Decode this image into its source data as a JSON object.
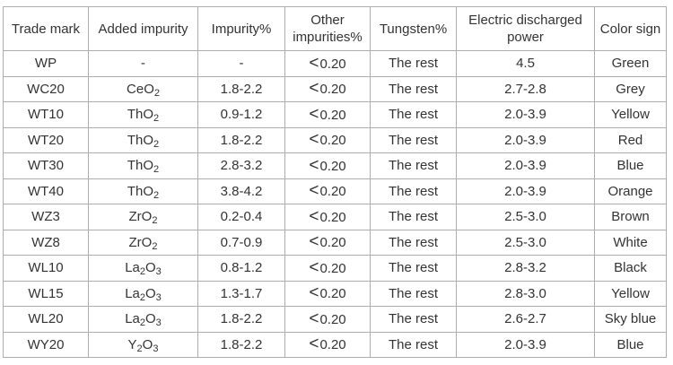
{
  "colors": {
    "border": "#adadad",
    "text": "#333333",
    "background": "#ffffff"
  },
  "table": {
    "columns": [
      {
        "key": "trade_mark",
        "label": "Trade mark"
      },
      {
        "key": "added_impurity",
        "label": "Added impurity"
      },
      {
        "key": "impurity",
        "label": "Impurity%"
      },
      {
        "key": "other",
        "label": "Other impurities%"
      },
      {
        "key": "tungsten",
        "label": "Tungsten%"
      },
      {
        "key": "power",
        "label": "Electric discharged power"
      },
      {
        "key": "color_sign",
        "label": "Color sign"
      }
    ],
    "rows": [
      {
        "trade_mark": "WP",
        "added_impurity": "-",
        "impurity": "-",
        "other": "<0.20",
        "tungsten": "The rest",
        "power": "4.5",
        "color_sign": "Green"
      },
      {
        "trade_mark": "WC20",
        "added_impurity": "CeO_2_",
        "impurity": "1.8-2.2",
        "other": "<0.20",
        "tungsten": "The rest",
        "power": "2.7-2.8",
        "color_sign": "Grey"
      },
      {
        "trade_mark": "WT10",
        "added_impurity": "ThO_2_",
        "impurity": "0.9-1.2",
        "other": "<0.20",
        "tungsten": "The rest",
        "power": "2.0-3.9",
        "color_sign": "Yellow"
      },
      {
        "trade_mark": "WT20",
        "added_impurity": "ThO_2_",
        "impurity": "1.8-2.2",
        "other": "<0.20",
        "tungsten": "The rest",
        "power": "2.0-3.9",
        "color_sign": "Red"
      },
      {
        "trade_mark": "WT30",
        "added_impurity": "ThO_2_",
        "impurity": "2.8-3.2",
        "other": "<0.20",
        "tungsten": "The rest",
        "power": "2.0-3.9",
        "color_sign": "Blue"
      },
      {
        "trade_mark": "WT40",
        "added_impurity": "ThO_2_",
        "impurity": "3.8-4.2",
        "other": "<0.20",
        "tungsten": "The rest",
        "power": "2.0-3.9",
        "color_sign": "Orange"
      },
      {
        "trade_mark": "WZ3",
        "added_impurity": "ZrO_2_",
        "impurity": "0.2-0.4",
        "other": "<0.20",
        "tungsten": "The rest",
        "power": "2.5-3.0",
        "color_sign": "Brown"
      },
      {
        "trade_mark": "WZ8",
        "added_impurity": "ZrO_2_",
        "impurity": "0.7-0.9",
        "other": "<0.20",
        "tungsten": "The rest",
        "power": "2.5-3.0",
        "color_sign": "White"
      },
      {
        "trade_mark": "WL10",
        "added_impurity": "La_2_O_3_",
        "impurity": "0.8-1.2",
        "other": "<0.20",
        "tungsten": "The rest",
        "power": "2.8-3.2",
        "color_sign": "Black"
      },
      {
        "trade_mark": "WL15",
        "added_impurity": "La_2_O_3_",
        "impurity": "1.3-1.7",
        "other": "<0.20",
        "tungsten": "The rest",
        "power": "2.8-3.0",
        "color_sign": "Yellow"
      },
      {
        "trade_mark": "WL20",
        "added_impurity": "La_2_O_3_",
        "impurity": "1.8-2.2",
        "other": "<0.20",
        "tungsten": "The rest",
        "power": "2.6-2.7",
        "color_sign": "Sky blue"
      },
      {
        "trade_mark": "WY20",
        "added_impurity": "Y_2_O_3_",
        "impurity": "1.8-2.2",
        "other": "<0.20",
        "tungsten": "The rest",
        "power": "2.0-3.9",
        "color_sign": "Blue"
      }
    ]
  }
}
